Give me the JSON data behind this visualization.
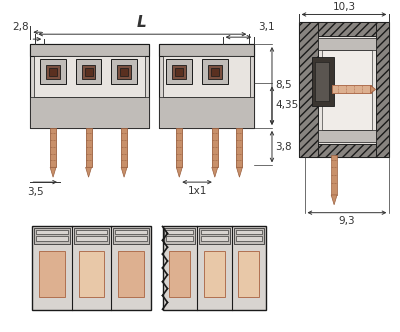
{
  "bg_color": "#ffffff",
  "line_color": "#1a1a1a",
  "gray_body": "#d8d4d0",
  "gray_mid": "#c0bcb8",
  "gray_dark": "#888480",
  "copper_color": "#c8906a",
  "copper_light": "#ddb090",
  "dim_color": "#333333",
  "dim_text_size": 7.5,
  "annotations": {
    "L": "L",
    "2.8": "2,8",
    "3.1": "3,1",
    "8.5": "8,5",
    "4.35": "4,35",
    "3.8": "3,8",
    "3.5": "3,5",
    "1x1": "1x1",
    "10.3": "10,3",
    "9.3": "9,3"
  }
}
